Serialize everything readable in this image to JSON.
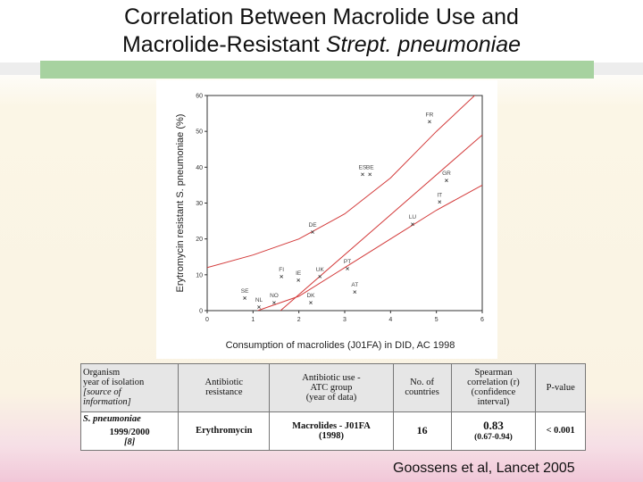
{
  "title_line1": "Correlation Between Macrolide Use and",
  "title_line2": "Macrolide-Resistant ",
  "title_line2_italic": "Strept. pneumoniae",
  "chart_data": {
    "type": "scatter",
    "xlabel": "Consumption of macrolides (J01FA) in DID, AC 1998",
    "ylabel": "Erytromycin resistant S. pneumoniae (%)",
    "xlim": [
      0,
      6
    ],
    "ylim": [
      0,
      60
    ],
    "xticks": [
      0,
      1,
      2,
      3,
      4,
      5,
      6
    ],
    "yticks": [
      0,
      10,
      20,
      30,
      40,
      50,
      60
    ],
    "marker_color": "#444444",
    "line_color": "#d33a3a",
    "labels": [
      "FR",
      "ES",
      "BE",
      "GR",
      "IT",
      "LU",
      "DE",
      "FI",
      "IE",
      "UK",
      "PT",
      "AT",
      "SE",
      "NL",
      "NO",
      "DK"
    ],
    "x": [
      4.85,
      3.39,
      3.55,
      5.22,
      5.07,
      4.48,
      2.3,
      1.62,
      1.99,
      2.46,
      3.06,
      3.22,
      0.82,
      1.13,
      1.46,
      2.26
    ],
    "values": [
      52.7,
      38,
      38,
      36.3,
      30.3,
      24.1,
      21.9,
      9.5,
      8.5,
      9.5,
      11.7,
      5.2,
      3.5,
      1.0,
      2.2,
      2.2
    ],
    "curves": [
      {
        "x": [
          0,
          1,
          2,
          3,
          4,
          5,
          6
        ],
        "values": [
          12,
          15.5,
          20,
          27,
          37,
          50,
          62
        ]
      },
      {
        "x": [
          1.6,
          6
        ],
        "values": [
          0,
          49
        ]
      },
      {
        "x": [
          1.1,
          2,
          3,
          4,
          5,
          6
        ],
        "values": [
          0,
          4,
          12,
          20,
          28,
          35
        ]
      }
    ]
  },
  "table": {
    "header": [
      [
        "Organism",
        "year of isolation",
        "[source of",
        "information]"
      ],
      [
        "Antibiotic",
        "resistance"
      ],
      [
        "Antibiotic use -",
        "ATC group",
        "(year of data)"
      ],
      [
        "No. of",
        "countries"
      ],
      [
        "Spearman",
        "correlation (r)",
        "(confidence",
        "interval)"
      ],
      [
        "P-value"
      ]
    ],
    "organism": "S. pneumoniae",
    "row": [
      [
        "1999/2000",
        "[8]"
      ],
      [
        "Erythromycin"
      ],
      [
        "Macrolides - J01FA",
        "(1998)"
      ],
      [
        "16"
      ],
      [
        "0.83",
        "(0.67-0.94)"
      ],
      [
        "< 0.001"
      ]
    ]
  },
  "citation": "Goossens et al, Lancet 2005"
}
